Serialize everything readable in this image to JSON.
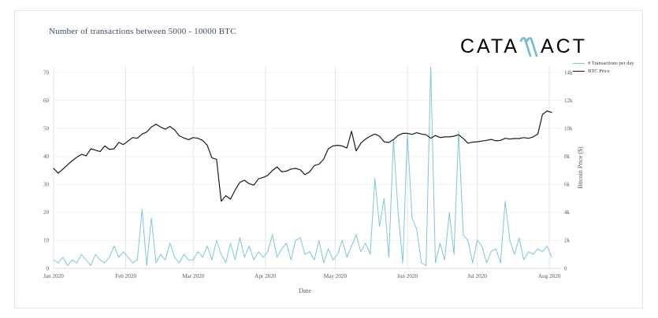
{
  "page": {
    "background": "#ffffff"
  },
  "card": {
    "border_color": "#e6e6e6"
  },
  "logo": {
    "brand": "Catallact",
    "text_left": "CATA",
    "text_right": "ACT",
    "color": "#6ebbd3"
  },
  "chart_data": {
    "type": "line",
    "title": "Number of transactions between 5000 - 10000 BTC",
    "xlabel": "Date",
    "ylabel_right": "Bitcoin Price ($)",
    "legend_position": "top-right",
    "grid": true,
    "x_tick_labels": [
      "Jan 2020",
      "Feb 2020",
      "Mar 2020",
      "Apr 2020",
      "May 2020",
      "Jun 2020",
      "Jul 2020",
      "Aug 2020"
    ],
    "x_tick_day_offsets": [
      0,
      31,
      60,
      91,
      121,
      152,
      182,
      213
    ],
    "x_domain_days": [
      0,
      218
    ],
    "left_ylim": [
      0,
      72
    ],
    "right_ylim": [
      0,
      14400
    ],
    "left_tick_values": [
      0,
      10,
      20,
      30,
      40,
      50,
      60,
      70
    ],
    "right_tick_values": [
      0,
      2000,
      4000,
      6000,
      8000,
      10000,
      12000,
      14000
    ],
    "right_tick_labels": [
      "0",
      "2k",
      "4k",
      "6k",
      "8k",
      "10k",
      "12k",
      "14k"
    ],
    "x_start_day": 0,
    "x_step_days": 2,
    "colors": {
      "grid_horizontal": "#f2f2f2",
      "grid_vertical": "#e4e4e4",
      "axis_line": "#d8d8d8",
      "tick_text": "#5a5a5a"
    },
    "series": [
      {
        "name": "# Transactions per day",
        "color": "#7cc7da",
        "axis": "left",
        "values": [
          3,
          2,
          4,
          1,
          3,
          2,
          5,
          3,
          1,
          5,
          3,
          2,
          4,
          8,
          4,
          6,
          4,
          2,
          3,
          21,
          1,
          18,
          2,
          5,
          3,
          9,
          4,
          2,
          5,
          3,
          3,
          6,
          4,
          8,
          3,
          10,
          5,
          2,
          9,
          3,
          11,
          4,
          8,
          3,
          6,
          4,
          6,
          12,
          4,
          7,
          9,
          3,
          10,
          11,
          5,
          6,
          3,
          10,
          2,
          7,
          3,
          5,
          10,
          4,
          8,
          12,
          6,
          9,
          5,
          32,
          15,
          25,
          4,
          46,
          20,
          2,
          48,
          18,
          14,
          2,
          1,
          72,
          2,
          9,
          3,
          20,
          5,
          49,
          12,
          10,
          2,
          10,
          8,
          2,
          6,
          7,
          2,
          24,
          10,
          5,
          11,
          3,
          6,
          5,
          7,
          6,
          8,
          4
        ]
      },
      {
        "name": "BTC Price",
        "color": "#1b1b1b",
        "axis": "right",
        "values": [
          7150,
          6800,
          7100,
          7400,
          7700,
          7950,
          8150,
          8050,
          8550,
          8450,
          8350,
          8750,
          8500,
          8550,
          9000,
          8850,
          9100,
          9350,
          9300,
          9600,
          9750,
          10100,
          10300,
          10100,
          9950,
          10150,
          9900,
          9480,
          9320,
          9200,
          9350,
          9300,
          9150,
          8800,
          7900,
          7800,
          4800,
          5200,
          4950,
          5600,
          6150,
          6300,
          6050,
          5950,
          6400,
          6500,
          6650,
          7000,
          7250,
          6900,
          6950,
          7100,
          7150,
          7050,
          6700,
          6900,
          7350,
          7450,
          7800,
          8550,
          8750,
          8800,
          8750,
          8600,
          9800,
          8400,
          8950,
          9250,
          9450,
          9600,
          9450,
          9050,
          9000,
          9200,
          9500,
          9650,
          9650,
          9580,
          9700,
          9600,
          9550,
          9300,
          9500,
          9350,
          9400,
          9400,
          9450,
          9550,
          9280,
          8950,
          9020,
          9050,
          9100,
          9150,
          9220,
          9120,
          9150,
          9300,
          9250,
          9280,
          9280,
          9350,
          9300,
          9400,
          9600,
          11000,
          11250,
          11150
        ]
      }
    ]
  }
}
